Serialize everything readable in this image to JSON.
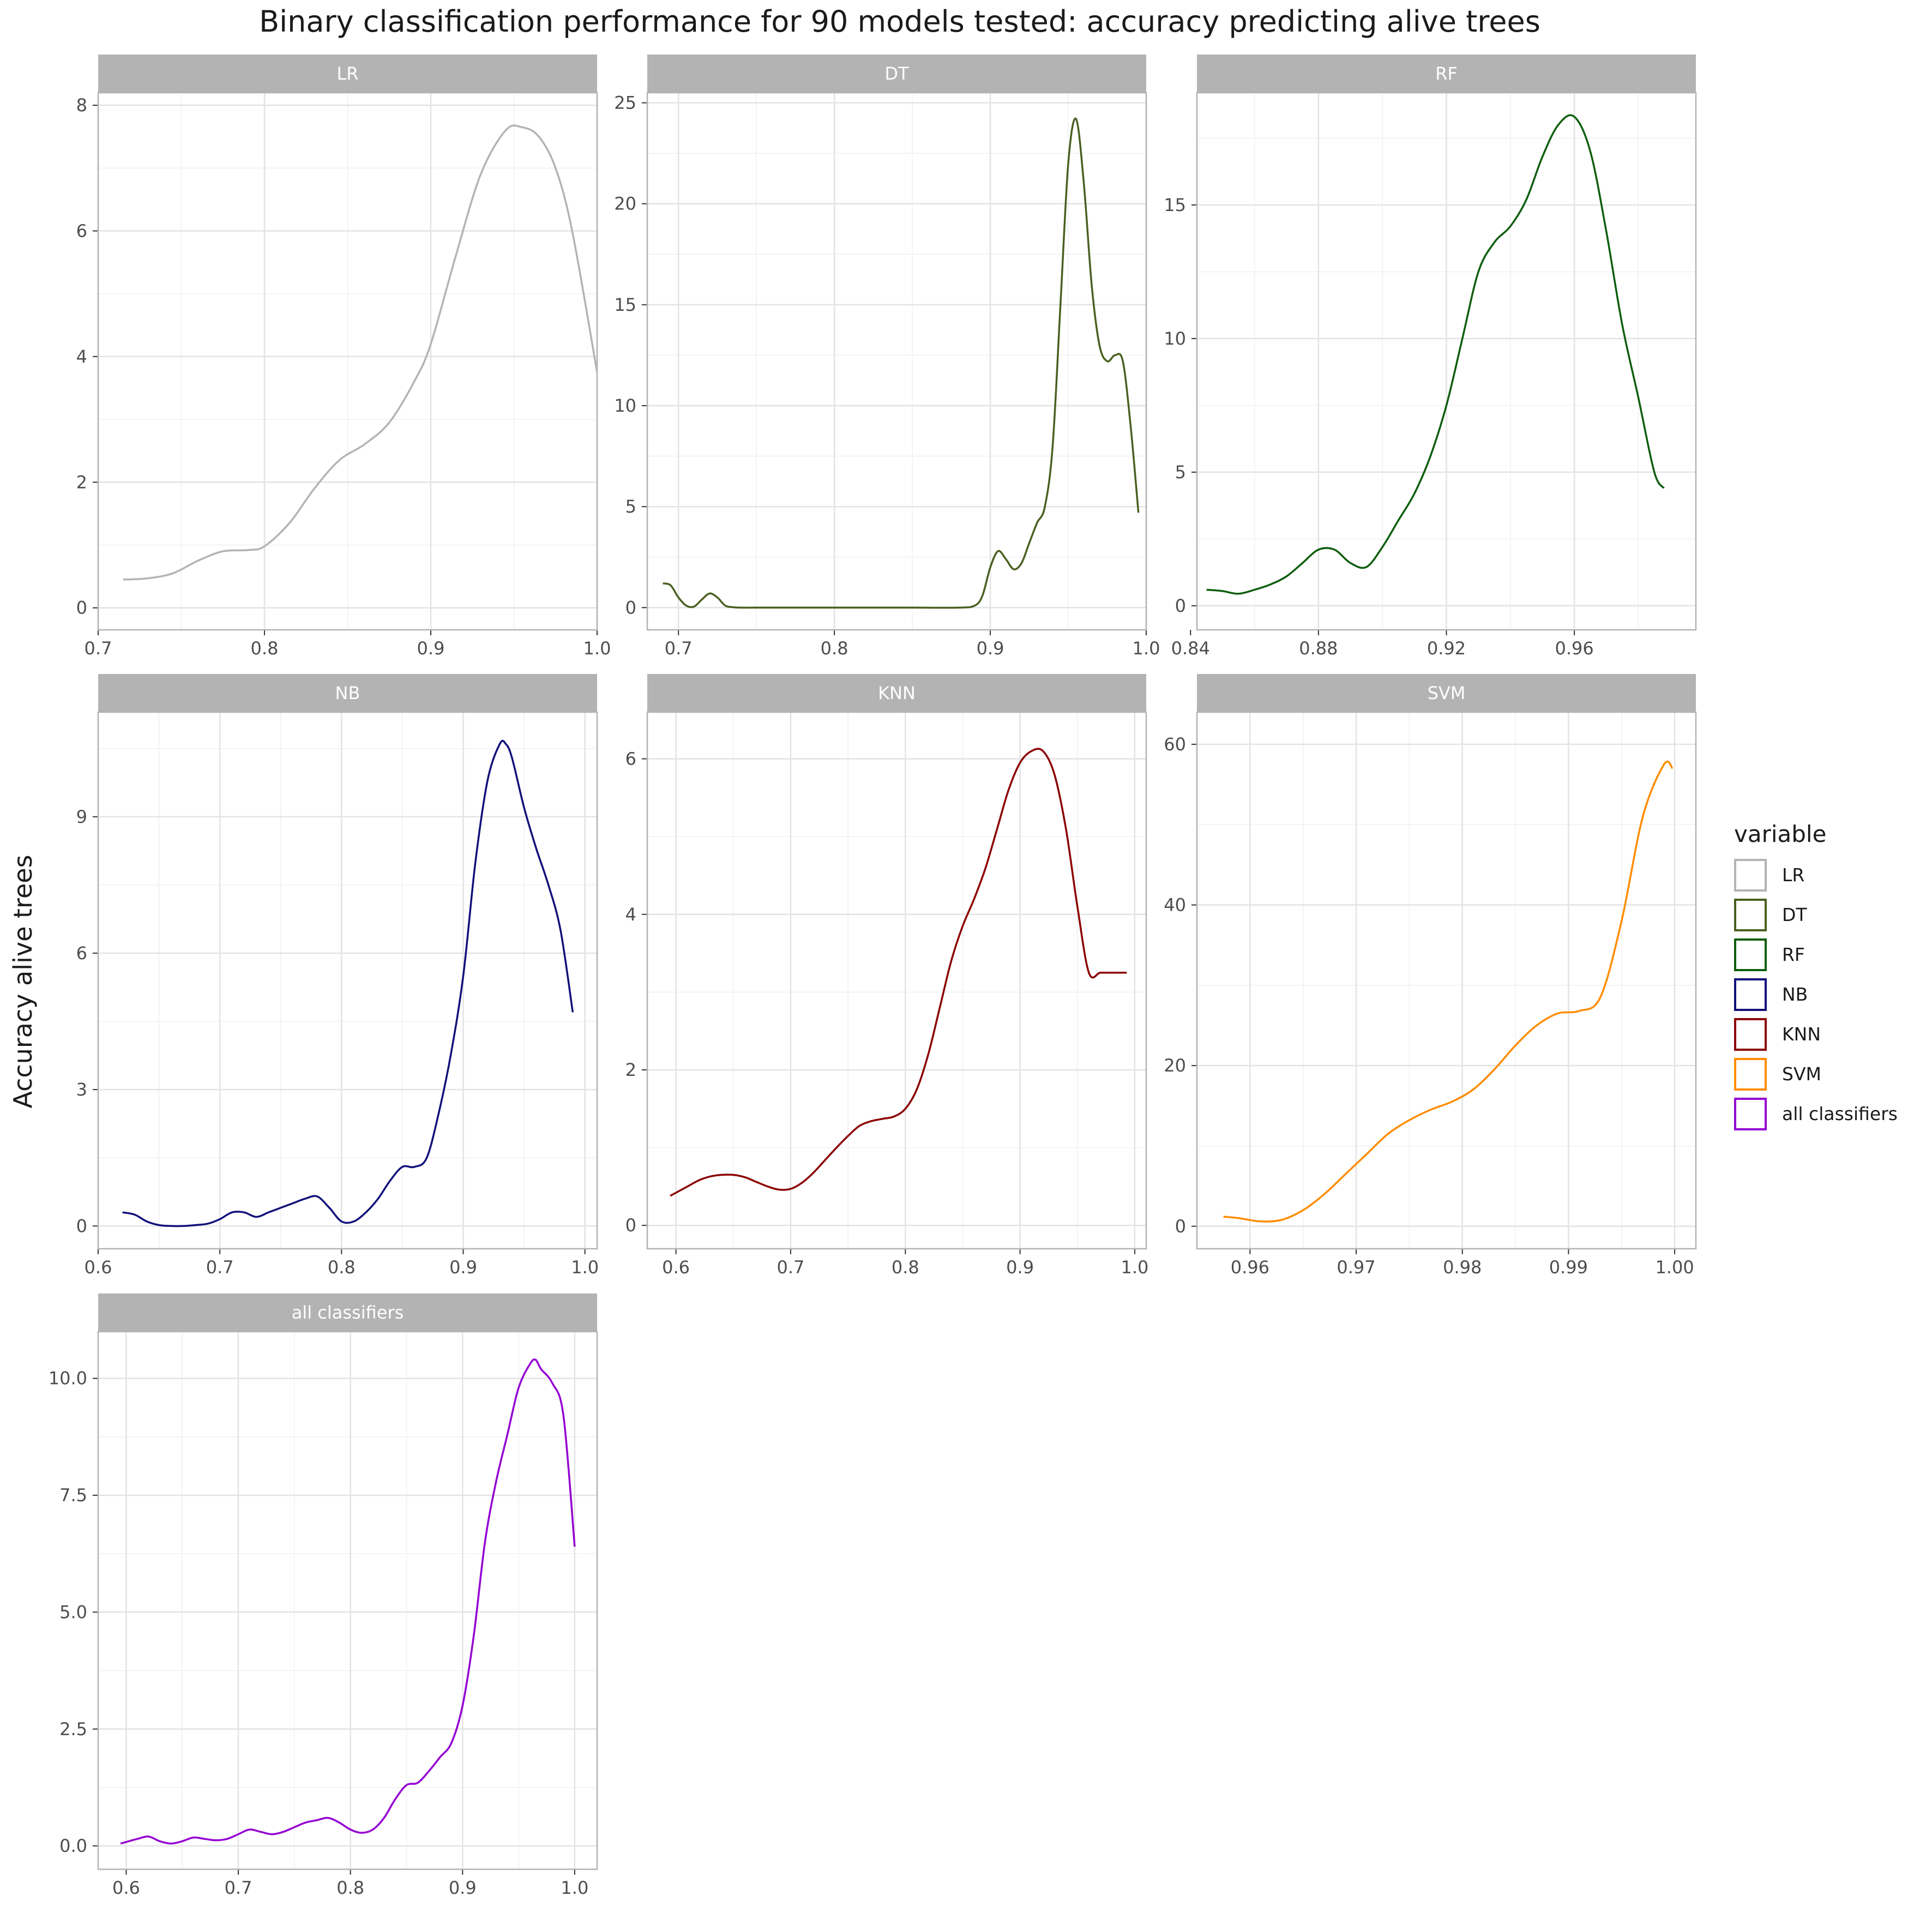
{
  "chart_data": {
    "type": "line",
    "subtype": "density",
    "title": "Binary classification performance for 90 models tested: accuracy predicting alive trees",
    "ylabel": "Accuracy alive trees",
    "legend": {
      "title": "variable",
      "placement": "right"
    },
    "grid": true,
    "facets": [
      {
        "name": "LR",
        "color": "#b3b3b3",
        "xlim": [
          0.7,
          1.0
        ],
        "ylim": [
          -0.35,
          8.2
        ],
        "xticks": [
          "0.7",
          "0.8",
          "0.9",
          "1.0"
        ],
        "xtick_values": [
          0.7,
          0.8,
          0.9,
          1.0
        ],
        "yticks": [
          "0",
          "2",
          "4",
          "6",
          "8"
        ],
        "ytick_values": [
          0,
          2,
          4,
          6,
          8
        ],
        "x": [
          0.715,
          0.73,
          0.745,
          0.76,
          0.775,
          0.79,
          0.8,
          0.815,
          0.83,
          0.845,
          0.86,
          0.875,
          0.89,
          0.9,
          0.915,
          0.93,
          0.945,
          0.955,
          0.965,
          0.975,
          0.985,
          1.0
        ],
        "y": [
          0.45,
          0.47,
          0.55,
          0.75,
          0.9,
          0.92,
          0.98,
          1.35,
          1.9,
          2.35,
          2.6,
          2.95,
          3.6,
          4.2,
          5.6,
          6.9,
          7.6,
          7.65,
          7.5,
          7.0,
          6.0,
          3.75
        ]
      },
      {
        "name": "DT",
        "color": "#4a6020",
        "xlim": [
          0.68,
          1.0
        ],
        "ylim": [
          -1.1,
          25.5
        ],
        "xticks": [
          "0.7",
          "0.8",
          "0.9",
          "1.0"
        ],
        "xtick_values": [
          0.7,
          0.8,
          0.9,
          1.0
        ],
        "yticks": [
          "0",
          "5",
          "10",
          "15",
          "20",
          "25"
        ],
        "ytick_values": [
          0,
          5,
          10,
          15,
          20,
          25
        ],
        "x": [
          0.69,
          0.695,
          0.7,
          0.705,
          0.71,
          0.715,
          0.72,
          0.725,
          0.73,
          0.735,
          0.74,
          0.75,
          0.8,
          0.85,
          0.88,
          0.89,
          0.895,
          0.9,
          0.905,
          0.91,
          0.915,
          0.92,
          0.925,
          0.93,
          0.935,
          0.94,
          0.945,
          0.95,
          0.955,
          0.96,
          0.965,
          0.97,
          0.975,
          0.98,
          0.985,
          0.99,
          0.995
        ],
        "y": [
          1.2,
          1.1,
          0.5,
          0.1,
          0.05,
          0.4,
          0.7,
          0.5,
          0.1,
          0.02,
          0.0,
          0.0,
          0.0,
          0.0,
          0.0,
          0.1,
          0.6,
          2.0,
          2.8,
          2.4,
          1.9,
          2.2,
          3.2,
          4.2,
          5.0,
          8.0,
          15.0,
          22.0,
          24.2,
          21.0,
          16.0,
          13.0,
          12.2,
          12.5,
          12.2,
          9.0,
          4.7
        ]
      },
      {
        "name": "RF",
        "color": "#0d5e0d",
        "xlim": [
          0.842,
          0.998
        ],
        "ylim": [
          -0.9,
          19.2
        ],
        "xticks": [
          "0.84",
          "0.88",
          "0.92",
          "0.96"
        ],
        "xtick_values": [
          0.84,
          0.88,
          0.92,
          0.96
        ],
        "yticks": [
          "0",
          "5",
          "10",
          "15"
        ],
        "ytick_values": [
          0,
          5,
          10,
          15
        ],
        "x": [
          0.845,
          0.85,
          0.855,
          0.86,
          0.865,
          0.87,
          0.875,
          0.88,
          0.885,
          0.89,
          0.895,
          0.9,
          0.905,
          0.91,
          0.915,
          0.92,
          0.925,
          0.93,
          0.935,
          0.94,
          0.945,
          0.95,
          0.955,
          0.96,
          0.965,
          0.97,
          0.975,
          0.98,
          0.985,
          0.988
        ],
        "y": [
          0.6,
          0.55,
          0.45,
          0.6,
          0.8,
          1.1,
          1.6,
          2.1,
          2.1,
          1.6,
          1.45,
          2.2,
          3.2,
          4.2,
          5.6,
          7.5,
          10.0,
          12.5,
          13.6,
          14.2,
          15.2,
          16.8,
          18.0,
          18.3,
          17.0,
          14.0,
          10.5,
          7.8,
          5.0,
          4.4
        ]
      },
      {
        "name": "NB",
        "color": "#10107a",
        "xlim": [
          0.6,
          1.01
        ],
        "ylim": [
          -0.5,
          11.3
        ],
        "xticks": [
          "0.6",
          "0.7",
          "0.8",
          "0.9",
          "1.0"
        ],
        "xtick_values": [
          0.6,
          0.7,
          0.8,
          0.9,
          1.0
        ],
        "yticks": [
          "0",
          "3",
          "6",
          "9"
        ],
        "ytick_values": [
          0,
          3,
          6,
          9
        ],
        "x": [
          0.62,
          0.63,
          0.64,
          0.65,
          0.66,
          0.67,
          0.68,
          0.69,
          0.7,
          0.71,
          0.72,
          0.73,
          0.74,
          0.75,
          0.76,
          0.77,
          0.78,
          0.79,
          0.8,
          0.81,
          0.82,
          0.83,
          0.84,
          0.85,
          0.86,
          0.87,
          0.88,
          0.89,
          0.9,
          0.91,
          0.92,
          0.93,
          0.935,
          0.94,
          0.95,
          0.96,
          0.97,
          0.98,
          0.99
        ],
        "y": [
          0.3,
          0.25,
          0.1,
          0.02,
          0.0,
          0.0,
          0.02,
          0.05,
          0.15,
          0.3,
          0.3,
          0.2,
          0.3,
          0.4,
          0.5,
          0.6,
          0.65,
          0.4,
          0.1,
          0.1,
          0.3,
          0.6,
          1.0,
          1.3,
          1.3,
          1.5,
          2.5,
          3.8,
          5.5,
          8.0,
          9.8,
          10.6,
          10.6,
          10.3,
          9.2,
          8.3,
          7.5,
          6.5,
          4.7
        ]
      },
      {
        "name": "KNN",
        "color": "#8b0000",
        "xlim": [
          0.575,
          1.01
        ],
        "ylim": [
          -0.3,
          6.6
        ],
        "xticks": [
          "0.6",
          "0.7",
          "0.8",
          "0.9",
          "1.0"
        ],
        "xtick_values": [
          0.6,
          0.7,
          0.8,
          0.9,
          1.0
        ],
        "yticks": [
          "0",
          "2",
          "4",
          "6"
        ],
        "ytick_values": [
          0,
          2,
          4,
          6
        ],
        "x": [
          0.595,
          0.61,
          0.62,
          0.63,
          0.64,
          0.65,
          0.66,
          0.67,
          0.68,
          0.69,
          0.7,
          0.71,
          0.72,
          0.73,
          0.74,
          0.75,
          0.76,
          0.77,
          0.78,
          0.79,
          0.8,
          0.81,
          0.82,
          0.83,
          0.84,
          0.85,
          0.86,
          0.87,
          0.88,
          0.89,
          0.9,
          0.91,
          0.92,
          0.93,
          0.94,
          0.95,
          0.96,
          0.97,
          0.98,
          0.99,
          0.993
        ],
        "y": [
          0.38,
          0.5,
          0.58,
          0.63,
          0.65,
          0.65,
          0.62,
          0.56,
          0.5,
          0.46,
          0.47,
          0.55,
          0.68,
          0.84,
          1.0,
          1.15,
          1.28,
          1.34,
          1.37,
          1.4,
          1.5,
          1.75,
          2.2,
          2.8,
          3.4,
          3.85,
          4.2,
          4.6,
          5.1,
          5.6,
          5.95,
          6.1,
          6.1,
          5.8,
          5.1,
          4.1,
          3.25,
          3.25,
          3.25,
          3.25,
          3.25
        ]
      },
      {
        "name": "SVM",
        "color": "#ff8c00",
        "xlim": [
          0.955,
          1.002
        ],
        "ylim": [
          -2.8,
          64
        ],
        "xticks": [
          "0.96",
          "0.97",
          "0.98",
          "0.99",
          "1.00"
        ],
        "xtick_values": [
          0.96,
          0.97,
          0.98,
          0.99,
          1.0
        ],
        "yticks": [
          "0",
          "20",
          "40",
          "60"
        ],
        "ytick_values": [
          0,
          20,
          40,
          60
        ],
        "x": [
          0.9575,
          0.959,
          0.961,
          0.963,
          0.965,
          0.967,
          0.969,
          0.971,
          0.973,
          0.975,
          0.977,
          0.979,
          0.981,
          0.983,
          0.985,
          0.987,
          0.989,
          0.991,
          0.993,
          0.995,
          0.997,
          0.999,
          0.9998
        ],
        "y": [
          1.2,
          1.0,
          0.6,
          0.8,
          2.0,
          4.0,
          6.5,
          9.0,
          11.5,
          13.2,
          14.5,
          15.5,
          17.0,
          19.5,
          22.5,
          25.0,
          26.5,
          26.8,
          28.5,
          38.0,
          51.0,
          57.5,
          57.0
        ]
      },
      {
        "name": "all classifiers",
        "color": "#9400d3",
        "xlim": [
          0.575,
          1.02
        ],
        "ylim": [
          -0.5,
          11.0
        ],
        "xticks": [
          "0.6",
          "0.7",
          "0.8",
          "0.9",
          "1.0"
        ],
        "xtick_values": [
          0.6,
          0.7,
          0.8,
          0.9,
          1.0
        ],
        "yticks": [
          "0.0",
          "2.5",
          "5.0",
          "7.5",
          "10.0"
        ],
        "ytick_values": [
          0,
          2.5,
          5,
          7.5,
          10
        ],
        "x": [
          0.595,
          0.61,
          0.62,
          0.63,
          0.64,
          0.65,
          0.66,
          0.67,
          0.68,
          0.69,
          0.7,
          0.71,
          0.72,
          0.73,
          0.74,
          0.75,
          0.76,
          0.77,
          0.78,
          0.79,
          0.8,
          0.81,
          0.82,
          0.83,
          0.84,
          0.85,
          0.86,
          0.87,
          0.88,
          0.89,
          0.9,
          0.91,
          0.92,
          0.93,
          0.94,
          0.95,
          0.96,
          0.965,
          0.97,
          0.98,
          0.99,
          1.0
        ],
        "y": [
          0.05,
          0.15,
          0.2,
          0.1,
          0.05,
          0.1,
          0.18,
          0.15,
          0.12,
          0.15,
          0.25,
          0.35,
          0.3,
          0.25,
          0.3,
          0.4,
          0.5,
          0.55,
          0.6,
          0.5,
          0.35,
          0.28,
          0.35,
          0.6,
          1.0,
          1.3,
          1.35,
          1.6,
          1.9,
          2.2,
          3.0,
          4.5,
          6.5,
          7.8,
          8.8,
          9.8,
          10.3,
          10.4,
          10.2,
          9.9,
          9.2,
          6.4
        ]
      }
    ]
  }
}
